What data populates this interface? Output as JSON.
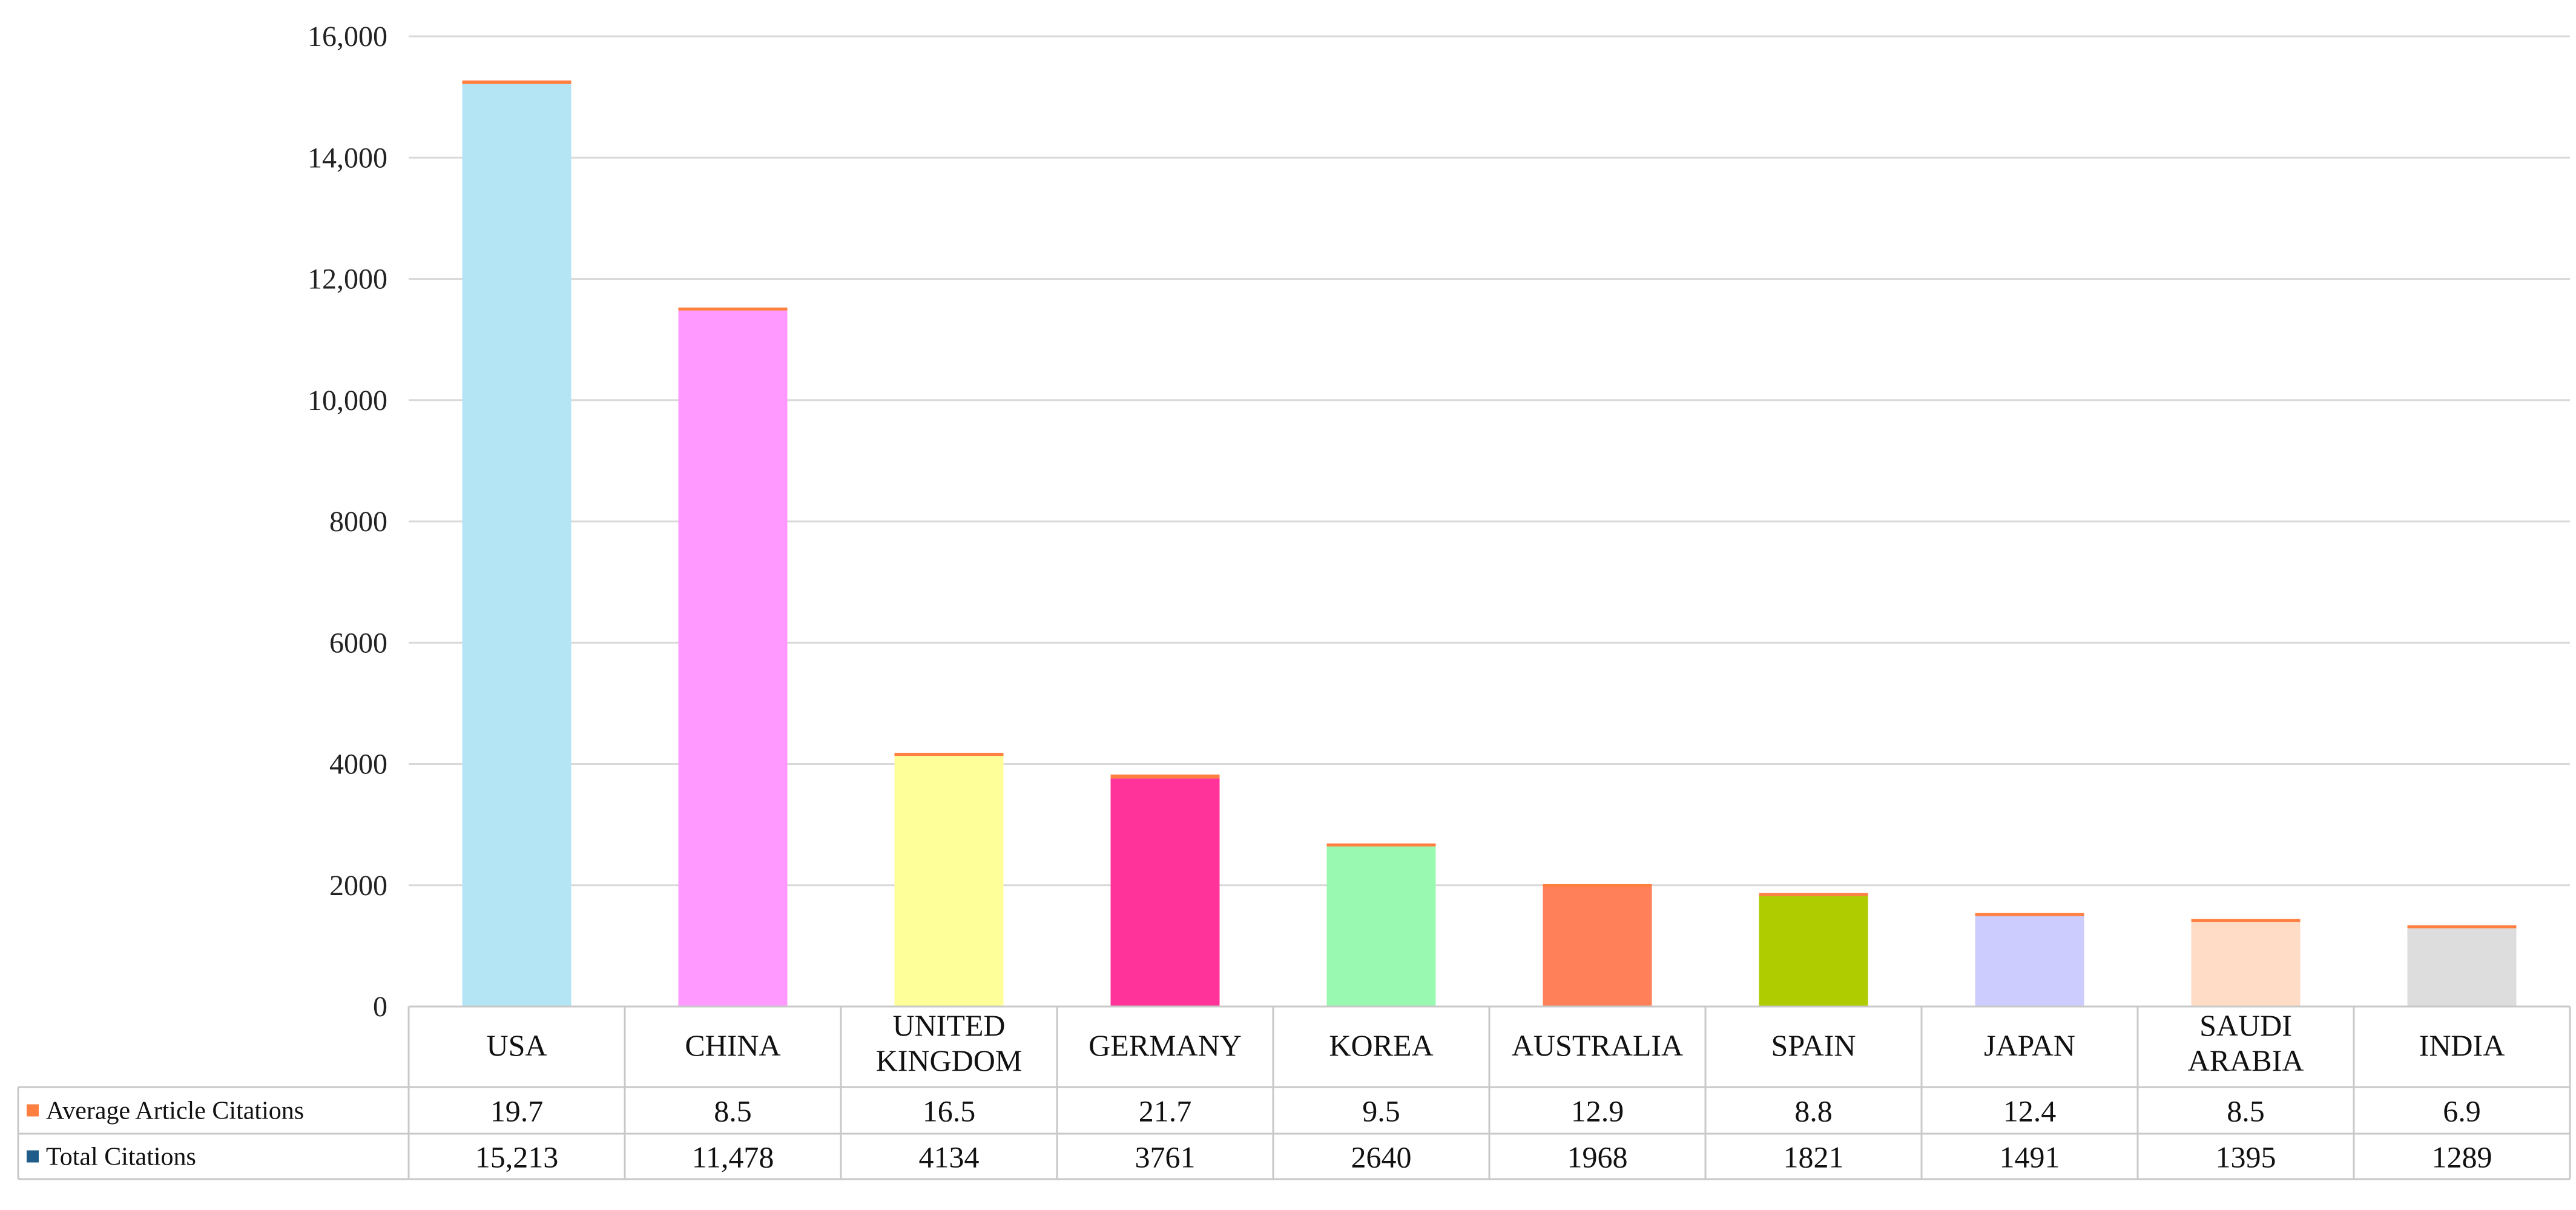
{
  "chart_data": {
    "type": "bar",
    "stacked": true,
    "categories": [
      "USA",
      "CHINA",
      "UNITED KINGDOM",
      "GERMANY",
      "KOREA",
      "AUSTRALIA",
      "SPAIN",
      "JAPAN",
      "SAUDI ARABIA",
      "INDIA"
    ],
    "category_lines": [
      [
        "USA"
      ],
      [
        "CHINA"
      ],
      [
        "UNITED",
        "KINGDOM"
      ],
      [
        "GERMANY"
      ],
      [
        "KOREA"
      ],
      [
        "AUSTRALIA"
      ],
      [
        "SPAIN"
      ],
      [
        "JAPAN"
      ],
      [
        "SAUDI",
        "ARABIA"
      ],
      [
        "INDIA"
      ]
    ],
    "series": [
      {
        "name": "Total Citations",
        "values": [
          15213,
          11478,
          4134,
          3761,
          2640,
          1968,
          1821,
          1491,
          1395,
          1289
        ],
        "labels": [
          "15,213",
          "11,478",
          "4134",
          "3761",
          "2640",
          "1968",
          "1821",
          "1491",
          "1395",
          "1289"
        ],
        "legend_color": "#1f5c8a",
        "bar_colors": [
          "#b3e5f5",
          "#ff99ff",
          "#ffff99",
          "#ff3399",
          "#99f9b0",
          "#ff8059",
          "#aecc00",
          "#ccccff",
          "#ffdcc6",
          "#dddddd"
        ]
      },
      {
        "name": "Average Article Citations",
        "values": [
          19.7,
          8.5,
          16.5,
          21.7,
          9.5,
          12.9,
          8.8,
          12.4,
          8.5,
          6.9
        ],
        "labels": [
          "19.7",
          "8.5",
          "16.5",
          "21.7",
          "9.5",
          "12.9",
          "8.8",
          "12.4",
          "8.5",
          "6.9"
        ],
        "color": "#ff7f40"
      }
    ],
    "table_rows": [
      "Average Article Citations",
      "Total Citations"
    ],
    "ylim": [
      0,
      16000
    ],
    "yticks": [
      0,
      2000,
      4000,
      6000,
      8000,
      10000,
      12000,
      14000,
      16000
    ],
    "ytick_labels": [
      "0",
      "2000",
      "4000",
      "6000",
      "8000",
      "10,000",
      "12,000",
      "14,000",
      "16,000"
    ],
    "grid": true,
    "data_table": true
  }
}
